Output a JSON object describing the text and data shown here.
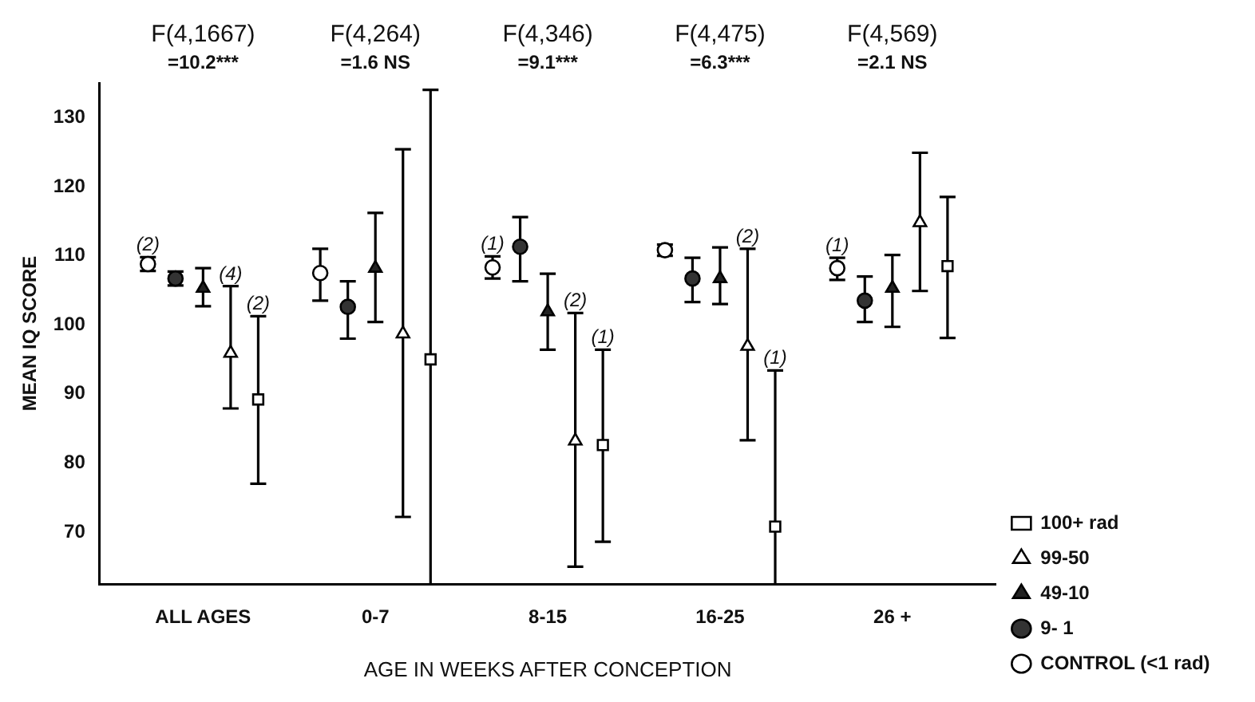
{
  "chart_data": {
    "type": "scatter",
    "xlabel": "AGE IN WEEKS AFTER CONCEPTION",
    "ylabel": "MEAN IQ SCORE",
    "categories": [
      "ALL AGES",
      "0-7",
      "8-15",
      "16-25",
      "26 +"
    ],
    "ylim": [
      62.5,
      135
    ],
    "yticks": [
      70,
      80,
      90,
      100,
      110,
      120,
      130
    ],
    "grid": false,
    "legend": "bottom right",
    "series": [
      {
        "name": "CONTROL (<1 rad)",
        "color": "#ffffff",
        "marker": "circle",
        "values": [
          108.8,
          107.5,
          108.3,
          110.8,
          108.2
        ],
        "errors": [
          [
            107.8,
            109.8
          ],
          [
            103.5,
            111
          ],
          [
            106.7,
            109.9
          ],
          [
            110,
            111.6
          ],
          [
            106.5,
            109.7
          ]
        ]
      },
      {
        "name": "9- 1",
        "color": "#333333",
        "marker": "circle",
        "values": [
          106.7,
          102.6,
          111.3,
          106.7,
          103.5
        ],
        "errors": [
          [
            105.7,
            107.7
          ],
          [
            98,
            106.3
          ],
          [
            106.3,
            115.6
          ],
          [
            103.3,
            109.7
          ],
          [
            100.4,
            107
          ]
        ]
      },
      {
        "name": "49-10",
        "color": "#222222",
        "marker": "triangle",
        "values": [
          105.3,
          108.2,
          101.9,
          106.7,
          105.3
        ],
        "errors": [
          [
            102.7,
            108.2
          ],
          [
            100.4,
            116.2
          ],
          [
            96.4,
            107.4
          ],
          [
            103,
            111.2
          ],
          [
            99.7,
            110.1
          ]
        ]
      },
      {
        "name": "99-50",
        "color": "#ffffff",
        "marker": "triangle",
        "values": [
          95.9,
          98.7,
          83.2,
          96.9,
          114.8
        ],
        "errors": [
          [
            87.9,
            105.6
          ],
          [
            72.2,
            125.4
          ],
          [
            65,
            101.7
          ],
          [
            83.3,
            111
          ],
          [
            104.9,
            124.9
          ]
        ]
      },
      {
        "name": "100+ rad",
        "color": "#ffffff",
        "marker": "square",
        "values": [
          89.2,
          95,
          82.6,
          70.8,
          108.5
        ],
        "errors": [
          [
            77,
            101.25
          ],
          [
            62.5,
            134
          ],
          [
            68.6,
            96.4
          ],
          [
            62.5,
            93.4
          ],
          [
            98.1,
            118.5
          ]
        ]
      }
    ],
    "annotations": [
      "F(4,1667)\n=10.2***",
      "F(4,264)\n=1.6 NS",
      "F(4,346)\n=9.1***",
      "F(4,475)\n=6.3***",
      "F(4,569)\n=2.1 NS",
      "(2)",
      {
        "text": "(4)",
        "x": "ALL AGES",
        "y": 105.6
      },
      "(2)",
      "(1)",
      {
        "text": "(2)",
        "x": "8-15",
        "y": 101.7
      },
      {
        "text": "(1)",
        "x": "8-15",
        "y": 96.4
      },
      {
        "text": "(2)",
        "x": "16-25",
        "y": 111
      },
      "(1)",
      {
        "text": "(1)",
        "x": "26 +",
        "y": 109.7
      }
    ]
  }
}
